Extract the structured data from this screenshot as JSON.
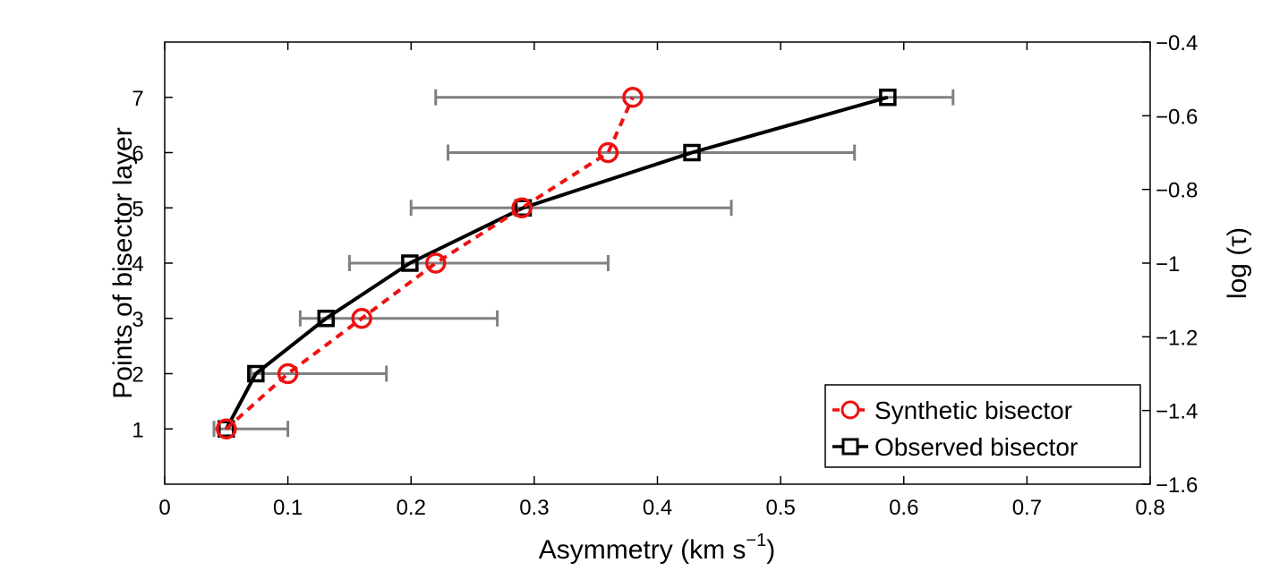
{
  "chart_data": {
    "type": "line",
    "xlabel": "Asymmetry (km s",
    "xlabel_sup": "−1",
    "xlabel_close": ")",
    "ylabel": "Points of bisector layer",
    "ylabel_right": "log (τ)",
    "xlim": [
      0,
      0.8
    ],
    "ylim": [
      0,
      8
    ],
    "ylim_right": [
      -1.6,
      -0.4
    ],
    "x_ticks": [
      {
        "value": 0,
        "label": "0"
      },
      {
        "value": 0.1,
        "label": "0.1"
      },
      {
        "value": 0.2,
        "label": "0.2"
      },
      {
        "value": 0.3,
        "label": "0.3"
      },
      {
        "value": 0.4,
        "label": "0.4"
      },
      {
        "value": 0.5,
        "label": "0.5"
      },
      {
        "value": 0.6,
        "label": "0.6"
      },
      {
        "value": 0.7,
        "label": "0.7"
      },
      {
        "value": 0.8,
        "label": "0.8"
      }
    ],
    "y_ticks": [
      {
        "value": 1,
        "label": "1"
      },
      {
        "value": 2,
        "label": "2"
      },
      {
        "value": 3,
        "label": "3"
      },
      {
        "value": 4,
        "label": "4"
      },
      {
        "value": 5,
        "label": "5"
      },
      {
        "value": 6,
        "label": "6"
      },
      {
        "value": 7,
        "label": "7"
      }
    ],
    "y_right_ticks": [
      {
        "value": -1.6,
        "label": "−1.6"
      },
      {
        "value": -1.4,
        "label": "−1.4"
      },
      {
        "value": -1.2,
        "label": "−1.2"
      },
      {
        "value": -1.0,
        "label": "−1"
      },
      {
        "value": -0.8,
        "label": "−0.8"
      },
      {
        "value": -0.6,
        "label": "−0.6"
      },
      {
        "value": -0.4,
        "label": "−0.4"
      }
    ],
    "legend_position": "bottom-right",
    "series": [
      {
        "name": "Synthetic bisector",
        "color": "#ee1111",
        "line_style": "dashed",
        "marker": "circle",
        "points": [
          {
            "x": 0.05,
            "y": 1
          },
          {
            "x": 0.1,
            "y": 2
          },
          {
            "x": 0.16,
            "y": 3
          },
          {
            "x": 0.22,
            "y": 4
          },
          {
            "x": 0.29,
            "y": 5
          },
          {
            "x": 0.36,
            "y": 6
          },
          {
            "x": 0.38,
            "y": 7
          }
        ]
      },
      {
        "name": "Observed bisector",
        "color": "#000000",
        "line_style": "solid",
        "marker": "square",
        "points": [
          {
            "x": 0.05,
            "y": 1,
            "xmin": 0.04,
            "xmax": 0.1
          },
          {
            "x": 0.074,
            "y": 2,
            "xmin": 0.07,
            "xmax": 0.18
          },
          {
            "x": 0.131,
            "y": 3,
            "xmin": 0.11,
            "xmax": 0.27
          },
          {
            "x": 0.199,
            "y": 4,
            "xmin": 0.15,
            "xmax": 0.36
          },
          {
            "x": 0.291,
            "y": 5,
            "xmin": 0.2,
            "xmax": 0.46
          },
          {
            "x": 0.428,
            "y": 6,
            "xmin": 0.23,
            "xmax": 0.56
          },
          {
            "x": 0.587,
            "y": 7,
            "xmin": 0.22,
            "xmax": 0.64
          }
        ]
      }
    ],
    "error_bar_color": "#808080"
  }
}
